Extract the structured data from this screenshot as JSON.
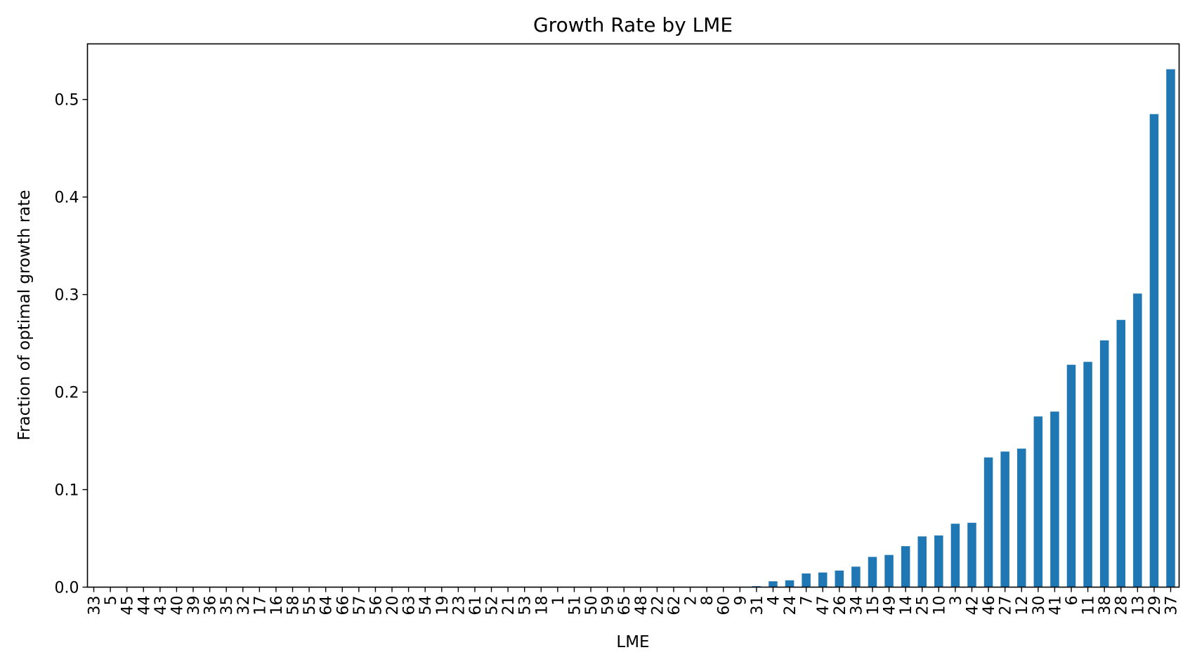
{
  "chart_data": {
    "type": "bar",
    "title": "Growth Rate by LME",
    "xlabel": "LME",
    "ylabel": "Fraction of optimal growth rate",
    "ylim": [
      0,
      0.557
    ],
    "yticks": [
      "0.0",
      "0.1",
      "0.2",
      "0.3",
      "0.4",
      "0.5"
    ],
    "grid": false,
    "bar_color": "#1f77b4",
    "categories": [
      "33",
      "5",
      "45",
      "44",
      "43",
      "40",
      "39",
      "36",
      "35",
      "32",
      "17",
      "16",
      "58",
      "55",
      "64",
      "66",
      "57",
      "56",
      "20",
      "63",
      "54",
      "19",
      "23",
      "61",
      "52",
      "21",
      "53",
      "18",
      "1",
      "51",
      "50",
      "59",
      "65",
      "48",
      "22",
      "62",
      "2",
      "8",
      "60",
      "9",
      "31",
      "4",
      "24",
      "7",
      "47",
      "26",
      "34",
      "15",
      "49",
      "14",
      "25",
      "10",
      "3",
      "42",
      "46",
      "27",
      "12",
      "30",
      "41",
      "6",
      "11",
      "38",
      "28",
      "13",
      "29",
      "37"
    ],
    "values": [
      0,
      0,
      0,
      0,
      0,
      0,
      0,
      0,
      0,
      0,
      0,
      0,
      0,
      0,
      0,
      0,
      0,
      0,
      0,
      0,
      0,
      0,
      0,
      0,
      0,
      0,
      0,
      0,
      0,
      0,
      0,
      0,
      0,
      0,
      0,
      0,
      0,
      0,
      0,
      0,
      0.001,
      0.006,
      0.007,
      0.014,
      0.015,
      0.017,
      0.021,
      0.031,
      0.033,
      0.042,
      0.052,
      0.053,
      0.065,
      0.066,
      0.133,
      0.139,
      0.142,
      0.175,
      0.18,
      0.228,
      0.231,
      0.253,
      0.274,
      0.301,
      0.485,
      0.531
    ]
  }
}
